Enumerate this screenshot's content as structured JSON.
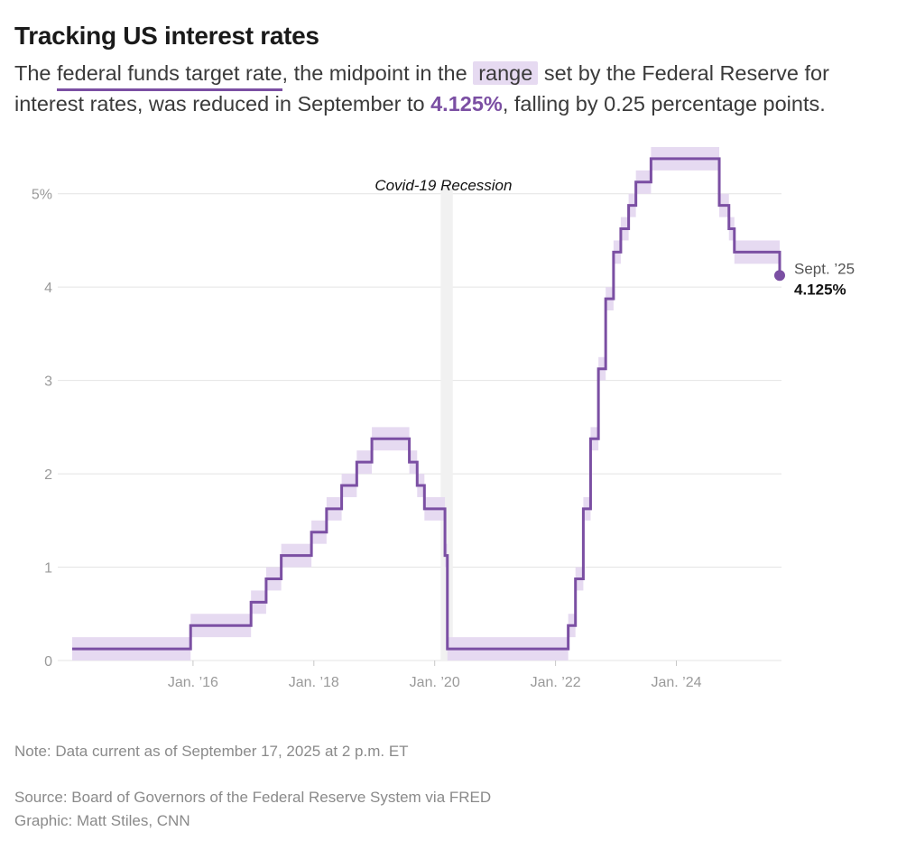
{
  "header": {
    "title": "Tracking US interest rates",
    "subtitle": {
      "part1": "The ",
      "link": "federal funds target rate",
      "part2": ", the midpoint in the ",
      "range": "range",
      "part3": " set by the Federal Reserve for interest rates, was reduced in September to ",
      "rate": "4.125%",
      "part4": ", falling by 0.25 percentage points."
    }
  },
  "colors": {
    "line": "#7b4fa3",
    "band": "#e6daf1",
    "recession": "#f1f1f1",
    "grid": "#e4e4e4"
  },
  "chart_data": {
    "type": "line",
    "subtype": "step",
    "title": "Tracking US interest rates",
    "xlabel": "",
    "ylabel": "",
    "xlim": [
      2014.0,
      2025.74
    ],
    "ylim": [
      0,
      5.5
    ],
    "y_ticks": [
      0,
      1,
      2,
      3,
      4,
      5
    ],
    "y_tick_labels": [
      "0",
      "1",
      "2",
      "3",
      "4",
      "5%"
    ],
    "x_ticks": [
      2016,
      2018,
      2020,
      2022,
      2024
    ],
    "x_tick_labels": [
      "Jan. ’16",
      "Jan. ’18",
      "Jan. ’20",
      "Jan. ’22",
      "Jan. ’24"
    ],
    "grid": true,
    "recession": {
      "label": "Covid-19 Recession",
      "start": 2020.1,
      "end": 2020.3
    },
    "series": [
      {
        "name": "Federal funds target rate (midpoint)",
        "points": [
          [
            2014.0,
            0.125
          ],
          [
            2015.96,
            0.375
          ],
          [
            2016.96,
            0.625
          ],
          [
            2017.21,
            0.875
          ],
          [
            2017.46,
            1.125
          ],
          [
            2017.96,
            1.375
          ],
          [
            2018.21,
            1.625
          ],
          [
            2018.46,
            1.875
          ],
          [
            2018.71,
            2.125
          ],
          [
            2018.96,
            2.375
          ],
          [
            2019.58,
            2.125
          ],
          [
            2019.71,
            1.875
          ],
          [
            2019.83,
            1.625
          ],
          [
            2020.17,
            1.125
          ],
          [
            2020.21,
            0.125
          ],
          [
            2022.21,
            0.375
          ],
          [
            2022.33,
            0.875
          ],
          [
            2022.46,
            1.625
          ],
          [
            2022.58,
            2.375
          ],
          [
            2022.71,
            3.125
          ],
          [
            2022.83,
            3.875
          ],
          [
            2022.96,
            4.375
          ],
          [
            2023.08,
            4.625
          ],
          [
            2023.21,
            4.875
          ],
          [
            2023.33,
            5.125
          ],
          [
            2023.58,
            5.375
          ],
          [
            2024.71,
            4.875
          ],
          [
            2024.87,
            4.625
          ],
          [
            2024.96,
            4.375
          ],
          [
            2025.71,
            4.125
          ]
        ]
      }
    ],
    "end_label": {
      "date": "Sept. ’25",
      "value": "4.125%"
    }
  },
  "footer": {
    "note": "Note: Data current as of September 17, 2025 at 2 p.m. ET",
    "source": "Source: Board of Governors of the Federal Reserve System via FRED",
    "graphic": "Graphic: Matt Stiles, CNN"
  }
}
